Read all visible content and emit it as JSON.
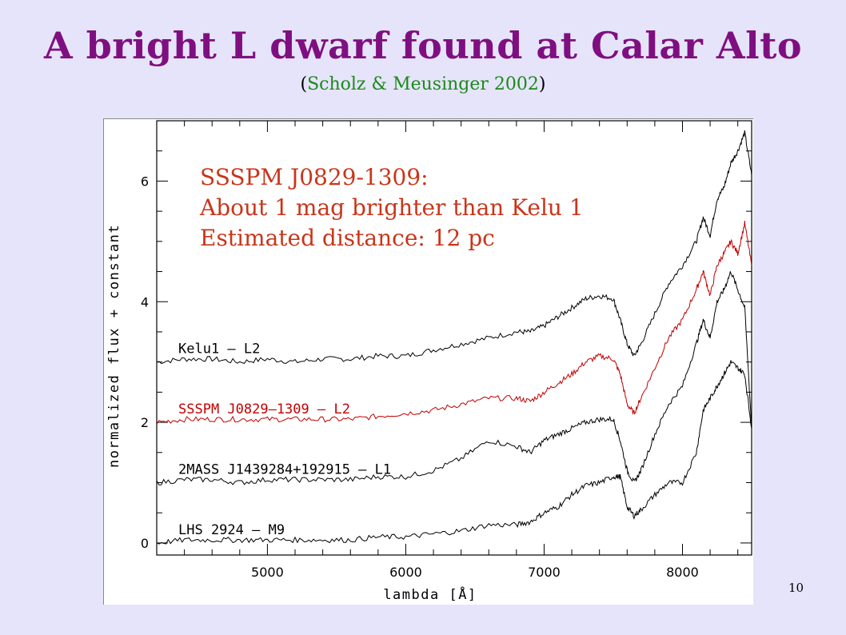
{
  "slide": {
    "title": "A bright L dwarf found at Calar Alto",
    "citation_open": "(",
    "citation_text": "Scholz & Meusinger 2002",
    "citation_close": ")",
    "page_number": "10",
    "title_color": "#7f0f80",
    "citation_color": "#1a8a1a",
    "annotation_color": "#c8361a"
  },
  "annotation": {
    "line1": "SSSPM J0829-1309:",
    "line2": "About 1 mag brighter than Kelu 1",
    "line3": "Estimated distance: 12 pc"
  },
  "chart_data": {
    "type": "line",
    "xlabel": "lambda [Å]",
    "ylabel": "normalized flux + constant",
    "xlim": [
      4200,
      8500
    ],
    "ylim": [
      -0.2,
      7.0
    ],
    "xticks": [
      5000,
      6000,
      7000,
      8000
    ],
    "yticks": [
      0,
      2,
      4,
      6
    ],
    "grid": false,
    "series": [
      {
        "name": "Kelu1 – L2",
        "color": "#000000",
        "x": [
          4200,
          4400,
          4600,
          4800,
          5000,
          5200,
          5400,
          5600,
          5800,
          6000,
          6200,
          6400,
          6600,
          6800,
          6900,
          7000,
          7100,
          7200,
          7300,
          7400,
          7500,
          7550,
          7600,
          7650,
          7700,
          7800,
          7900,
          8000,
          8100,
          8150,
          8200,
          8250,
          8300,
          8350,
          8400,
          8450,
          8500
        ],
        "y": [
          3.0,
          3.05,
          3.05,
          3.0,
          3.05,
          3.0,
          3.05,
          3.05,
          3.1,
          3.1,
          3.2,
          3.3,
          3.4,
          3.5,
          3.5,
          3.6,
          3.75,
          3.9,
          4.05,
          4.1,
          4.05,
          3.7,
          3.3,
          3.1,
          3.3,
          3.8,
          4.3,
          4.6,
          5.0,
          5.4,
          5.1,
          5.7,
          5.9,
          6.3,
          6.5,
          6.8,
          6.1
        ]
      },
      {
        "name": "SSSPM J0829–1309 – L2",
        "color": "#c00000",
        "x": [
          4200,
          4400,
          4600,
          4800,
          5000,
          5200,
          5400,
          5600,
          5800,
          6000,
          6200,
          6400,
          6600,
          6800,
          6900,
          7000,
          7100,
          7200,
          7300,
          7400,
          7500,
          7550,
          7600,
          7650,
          7700,
          7800,
          7900,
          8000,
          8100,
          8150,
          8200,
          8250,
          8300,
          8350,
          8400,
          8450,
          8500
        ],
        "y": [
          2.0,
          2.05,
          2.05,
          2.05,
          2.05,
          2.05,
          2.05,
          2.05,
          2.1,
          2.15,
          2.2,
          2.3,
          2.4,
          2.4,
          2.35,
          2.5,
          2.65,
          2.8,
          3.0,
          3.1,
          3.05,
          2.8,
          2.3,
          2.15,
          2.4,
          2.9,
          3.4,
          3.7,
          4.2,
          4.5,
          4.1,
          4.6,
          4.8,
          5.0,
          4.8,
          5.3,
          4.6
        ]
      },
      {
        "name": "2MASS J1439284+192915 – L1",
        "color": "#000000",
        "x": [
          4200,
          4400,
          4600,
          4800,
          5000,
          5200,
          5400,
          5600,
          5800,
          6000,
          6200,
          6400,
          6600,
          6800,
          6900,
          7000,
          7100,
          7200,
          7300,
          7400,
          7500,
          7550,
          7600,
          7650,
          7700,
          7800,
          7900,
          8000,
          8100,
          8150,
          8200,
          8250,
          8300,
          8350,
          8400,
          8450,
          8500
        ],
        "y": [
          1.0,
          1.05,
          1.05,
          1.0,
          1.05,
          1.05,
          1.05,
          1.05,
          1.1,
          1.1,
          1.2,
          1.4,
          1.7,
          1.6,
          1.5,
          1.7,
          1.8,
          1.9,
          2.0,
          2.05,
          2.05,
          1.7,
          1.2,
          1.0,
          1.2,
          1.8,
          2.3,
          2.6,
          3.3,
          3.7,
          3.4,
          4.0,
          4.2,
          4.5,
          4.2,
          3.9,
          1.9
        ]
      },
      {
        "name": "LHS 2924 – M9",
        "color": "#000000",
        "x": [
          4200,
          4400,
          4600,
          4800,
          5000,
          5200,
          5400,
          5600,
          5800,
          6000,
          6200,
          6400,
          6600,
          6800,
          6900,
          7000,
          7100,
          7200,
          7300,
          7400,
          7500,
          7550,
          7600,
          7650,
          7700,
          7800,
          7900,
          8000,
          8100,
          8150,
          8200,
          8250,
          8300,
          8350,
          8400,
          8450,
          8500
        ],
        "y": [
          0.0,
          0.05,
          0.05,
          0.05,
          0.05,
          0.05,
          0.05,
          0.05,
          0.1,
          0.1,
          0.15,
          0.2,
          0.3,
          0.3,
          0.35,
          0.5,
          0.6,
          0.8,
          0.95,
          1.0,
          1.1,
          1.1,
          0.6,
          0.45,
          0.55,
          0.8,
          1.0,
          1.0,
          1.5,
          2.2,
          2.4,
          2.6,
          2.8,
          3.0,
          2.9,
          2.8,
          1.9
        ]
      }
    ],
    "labels": [
      {
        "text": "Kelu1 – L2",
        "series": 0
      },
      {
        "text": "SSSPM J0829–1309 – L2",
        "series": 1
      },
      {
        "text": "2MASS J1439284+192915 – L1",
        "series": 2
      },
      {
        "text": "LHS 2924 – M9",
        "series": 3
      }
    ]
  }
}
